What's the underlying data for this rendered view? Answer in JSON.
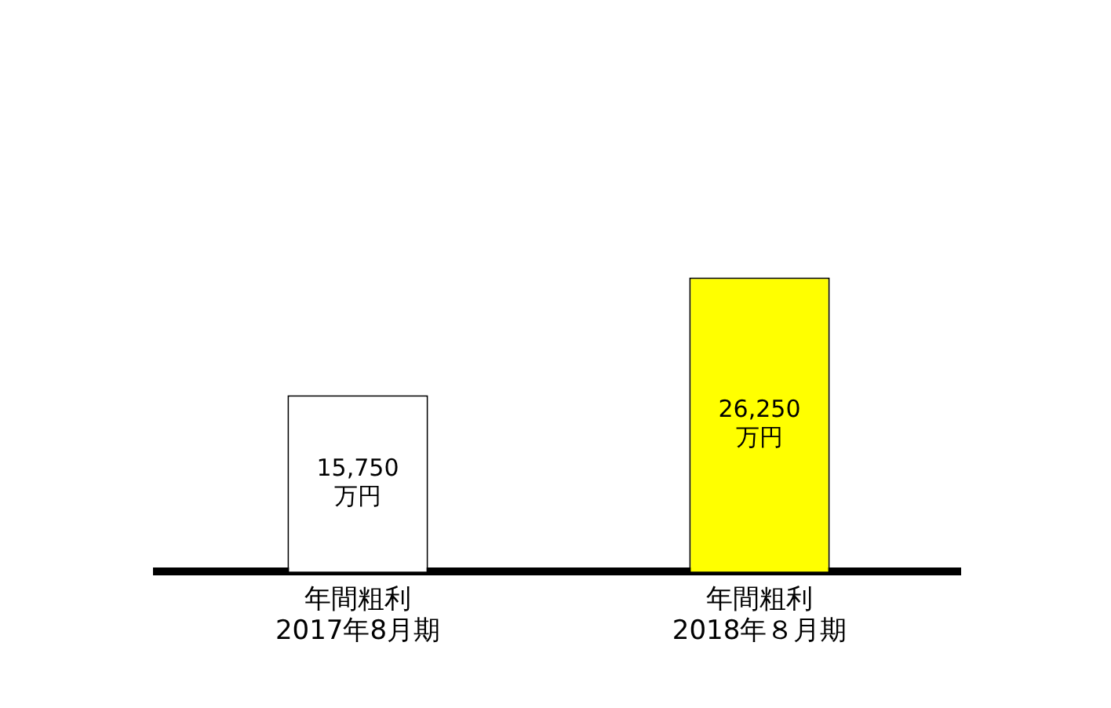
{
  "chart_data": {
    "type": "bar",
    "categories": [
      "年間粗利\n2017年8月期",
      "年間粗利\n2018年８月期"
    ],
    "values": [
      15750,
      26250
    ],
    "colors": [
      "#ffffff",
      "#ffff00"
    ],
    "value_labels": [
      "15,750\n万円",
      "26,250\n万円"
    ],
    "grid": false,
    "legend": false
  }
}
